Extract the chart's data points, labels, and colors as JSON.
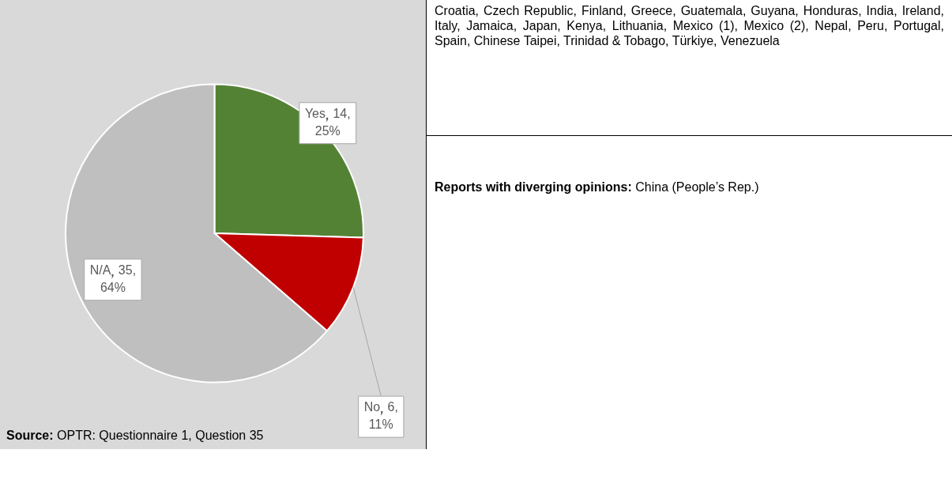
{
  "chart_data": [
    {
      "type": "pie",
      "categories": [
        "Yes",
        "No",
        "N/A"
      ],
      "values": [
        14,
        6,
        35
      ],
      "colors": [
        "#548235",
        "#c00000",
        "#bfbfbf"
      ],
      "value_labels": [
        "14, 25%",
        "6, 11%",
        "35, 64%"
      ],
      "legend": false,
      "annotations": [
        "Source: OPTR: Questionnaire 1, Question 35"
      ]
    },
    {
      "type": "other",
      "annotations": [
        "Croatia, Czech Republic, Finland, Greece, Guatemala, Guyana, Honduras, India, Ireland, Italy, Jamaica, Japan, Kenya, Lithuania, Mexico (1), Mexico (2), Nepal, Peru, Portugal, Spain, Chinese Taipei, Trinidad & Tobago, Türkiye, Venezuela",
        "Reports with diverging opinions:",
        "China (People’s Rep.)"
      ]
    }
  ]
}
